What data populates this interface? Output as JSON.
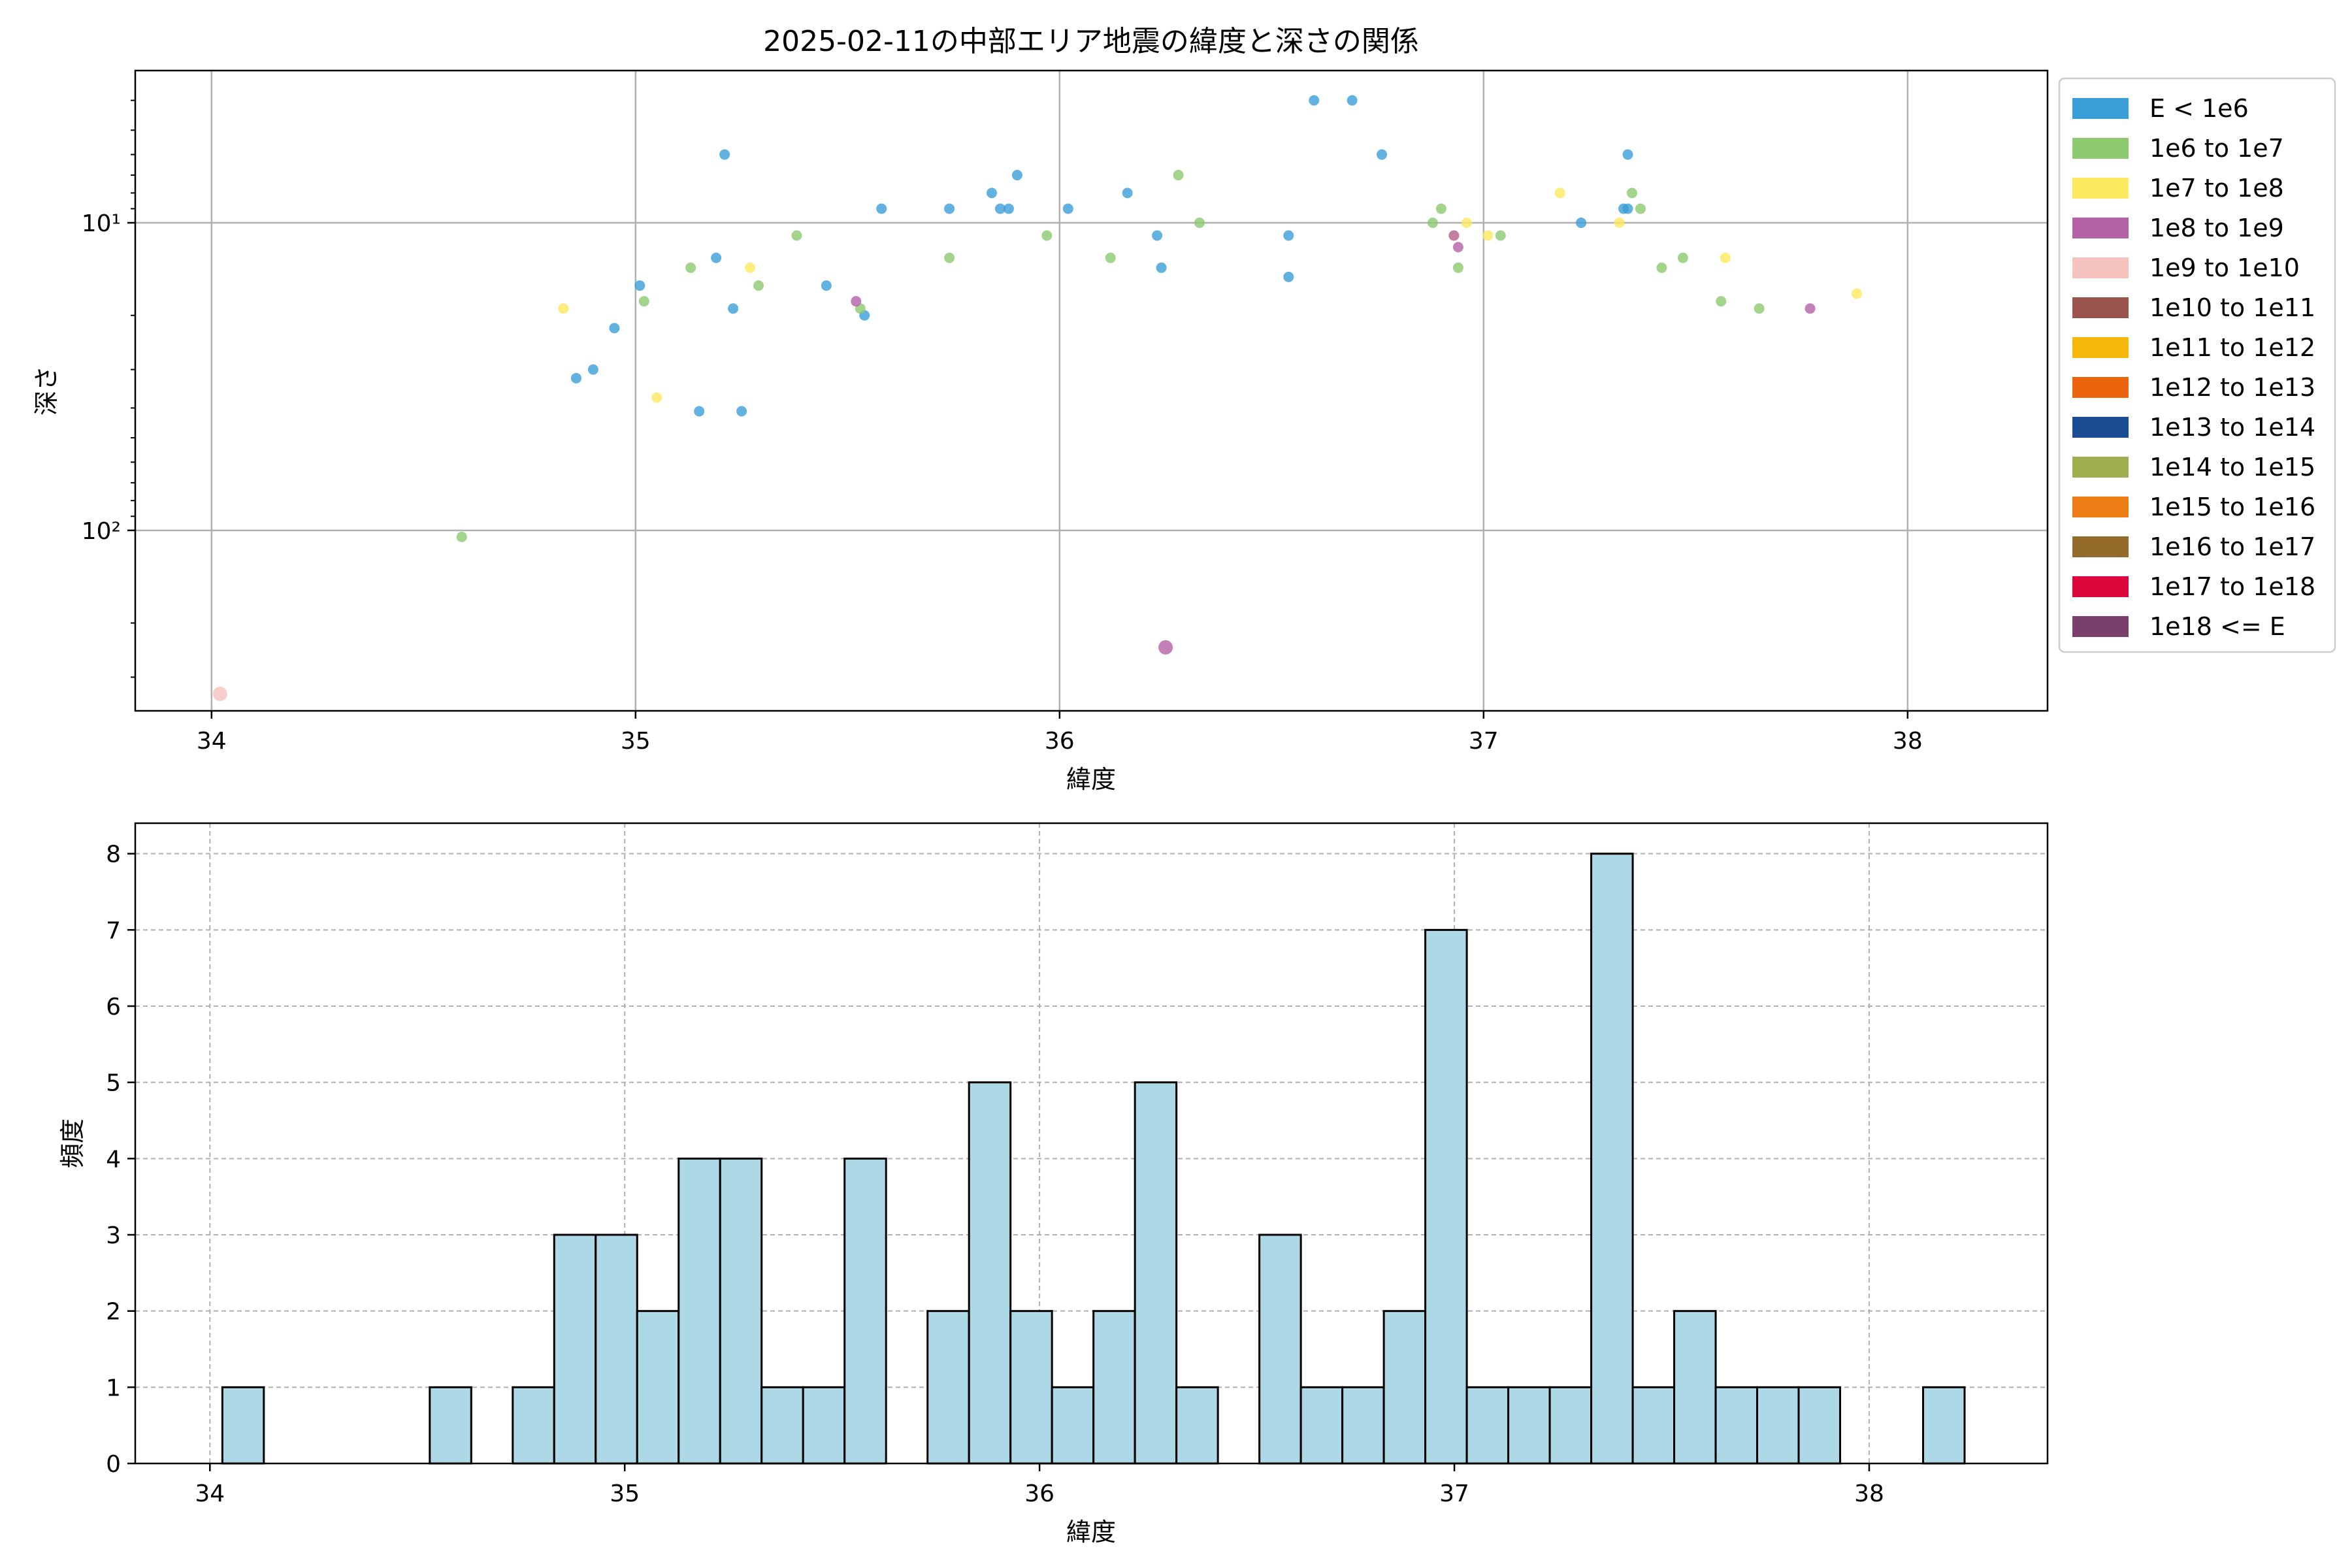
{
  "chart_data": [
    {
      "type": "scatter",
      "title": "2025-02-11の中部エリア地震の緯度と深さの関係",
      "xlabel": "緯度",
      "ylabel": "深さ",
      "xlim": [
        33.82,
        38.33
      ],
      "ylim": [
        386,
        3.2
      ],
      "y_scale": "log",
      "y_inverted": true,
      "grid": true,
      "x_ticks": [
        34,
        35,
        36,
        37,
        38
      ],
      "x_tick_labels": [
        "34",
        "35",
        "36",
        "37",
        "38"
      ],
      "y_ticks": [
        10,
        100
      ],
      "y_tick_labels": [
        "10¹",
        "10²"
      ],
      "legend_position": "outside-right",
      "legend": [
        {
          "label": "E < 1e6",
          "color": "#3a9ed9"
        },
        {
          "label": "1e6 to 1e7",
          "color": "#8cc96f"
        },
        {
          "label": "1e7 to 1e8",
          "color": "#fce95f"
        },
        {
          "label": "1e8 to 1e9",
          "color": "#b561a6"
        },
        {
          "label": "1e9 to 1e10",
          "color": "#f5c2be"
        },
        {
          "label": "1e10 to 1e11",
          "color": "#9a534d"
        },
        {
          "label": "1e11 to 1e12",
          "color": "#f6b70b"
        },
        {
          "label": "1e12 to 1e13",
          "color": "#ec650c"
        },
        {
          "label": "1e13 to 1e14",
          "color": "#1b4b91"
        },
        {
          "label": "1e14 to 1e15",
          "color": "#9eae4e"
        },
        {
          "label": "1e15 to 1e16",
          "color": "#ee7c14"
        },
        {
          "label": "1e16 to 1e17",
          "color": "#946b2b"
        },
        {
          "label": "1e17 to 1e18",
          "color": "#db073d"
        },
        {
          "label": "1e18 <= E",
          "color": "#7a3f6b"
        }
      ],
      "series": [
        {
          "name": "E < 1e6",
          "points": [
            [
              34.86,
              32
            ],
            [
              34.9,
              30
            ],
            [
              34.95,
              22
            ],
            [
              35.01,
              16
            ],
            [
              35.15,
              41
            ],
            [
              35.19,
              13
            ],
            [
              35.21,
              6
            ],
            [
              35.23,
              19
            ],
            [
              35.25,
              41
            ],
            [
              35.45,
              16
            ],
            [
              35.54,
              20
            ],
            [
              35.58,
              9
            ],
            [
              35.74,
              9
            ],
            [
              35.84,
              8
            ],
            [
              35.86,
              9
            ],
            [
              35.88,
              9
            ],
            [
              35.9,
              7
            ],
            [
              36.02,
              9
            ],
            [
              36.16,
              8
            ],
            [
              36.23,
              11
            ],
            [
              36.24,
              14
            ],
            [
              36.54,
              11
            ],
            [
              36.54,
              15
            ],
            [
              36.6,
              4
            ],
            [
              36.69,
              4
            ],
            [
              36.76,
              6
            ],
            [
              37.23,
              10
            ],
            [
              37.33,
              9
            ],
            [
              37.34,
              6
            ],
            [
              37.34,
              9
            ]
          ]
        },
        {
          "name": "1e6 to 1e7",
          "points": [
            [
              34.59,
              105
            ],
            [
              35.02,
              18
            ],
            [
              35.13,
              14
            ],
            [
              35.29,
              16
            ],
            [
              35.38,
              11
            ],
            [
              35.53,
              19
            ],
            [
              35.74,
              13
            ],
            [
              35.97,
              11
            ],
            [
              36.12,
              13
            ],
            [
              36.28,
              7
            ],
            [
              36.33,
              10
            ],
            [
              36.88,
              10
            ],
            [
              36.9,
              9
            ],
            [
              36.94,
              14
            ],
            [
              37.04,
              11
            ],
            [
              37.35,
              8
            ],
            [
              37.37,
              9
            ],
            [
              37.42,
              14
            ],
            [
              37.47,
              13
            ],
            [
              37.56,
              18
            ],
            [
              37.65,
              19
            ]
          ]
        },
        {
          "name": "1e7 to 1e8",
          "points": [
            [
              34.83,
              19
            ],
            [
              35.05,
              37
            ],
            [
              35.27,
              14
            ],
            [
              36.93,
              11
            ],
            [
              36.96,
              10
            ],
            [
              37.01,
              11
            ],
            [
              37.18,
              8
            ],
            [
              37.32,
              10
            ],
            [
              37.57,
              13
            ],
            [
              37.88,
              17
            ]
          ]
        },
        {
          "name": "1e8 to 1e9",
          "points": [
            [
              35.52,
              18
            ],
            [
              36.25,
              240
            ],
            [
              36.93,
              11
            ],
            [
              36.94,
              12
            ],
            [
              37.77,
              19
            ]
          ]
        },
        {
          "name": "1e9 to 1e10",
          "points": [
            [
              34.02,
              340
            ]
          ]
        }
      ]
    },
    {
      "type": "bar",
      "title": "",
      "xlabel": "緯度",
      "ylabel": "頻度",
      "xlim": [
        33.82,
        38.43
      ],
      "ylim": [
        0,
        8.4
      ],
      "grid": true,
      "bin_width": 0.1,
      "bar_color": "#add8e6",
      "edge_color": "#000000",
      "x_ticks": [
        34,
        35,
        36,
        37,
        38
      ],
      "x_tick_labels": [
        "34",
        "35",
        "36",
        "37",
        "38"
      ],
      "y_ticks": [
        0,
        1,
        2,
        3,
        4,
        5,
        6,
        7,
        8
      ],
      "y_tick_labels": [
        "0",
        "1",
        "2",
        "3",
        "4",
        "5",
        "6",
        "7",
        "8"
      ],
      "bins": [
        {
          "x": 34.03,
          "count": 1
        },
        {
          "x": 34.53,
          "count": 1
        },
        {
          "x": 34.73,
          "count": 1
        },
        {
          "x": 34.83,
          "count": 3
        },
        {
          "x": 34.93,
          "count": 3
        },
        {
          "x": 35.03,
          "count": 2
        },
        {
          "x": 35.13,
          "count": 4
        },
        {
          "x": 35.23,
          "count": 4
        },
        {
          "x": 35.33,
          "count": 1
        },
        {
          "x": 35.43,
          "count": 1
        },
        {
          "x": 35.53,
          "count": 4
        },
        {
          "x": 35.73,
          "count": 2
        },
        {
          "x": 35.83,
          "count": 5
        },
        {
          "x": 35.93,
          "count": 2
        },
        {
          "x": 36.03,
          "count": 1
        },
        {
          "x": 36.13,
          "count": 2
        },
        {
          "x": 36.23,
          "count": 5
        },
        {
          "x": 36.33,
          "count": 1
        },
        {
          "x": 36.53,
          "count": 3
        },
        {
          "x": 36.63,
          "count": 1
        },
        {
          "x": 36.73,
          "count": 1
        },
        {
          "x": 36.83,
          "count": 2
        },
        {
          "x": 36.93,
          "count": 7
        },
        {
          "x": 37.03,
          "count": 1
        },
        {
          "x": 37.13,
          "count": 1
        },
        {
          "x": 37.23,
          "count": 1
        },
        {
          "x": 37.33,
          "count": 8
        },
        {
          "x": 37.43,
          "count": 1
        },
        {
          "x": 37.53,
          "count": 2
        },
        {
          "x": 37.63,
          "count": 1
        },
        {
          "x": 37.73,
          "count": 1
        },
        {
          "x": 37.83,
          "count": 1
        },
        {
          "x": 38.13,
          "count": 1
        }
      ]
    }
  ]
}
